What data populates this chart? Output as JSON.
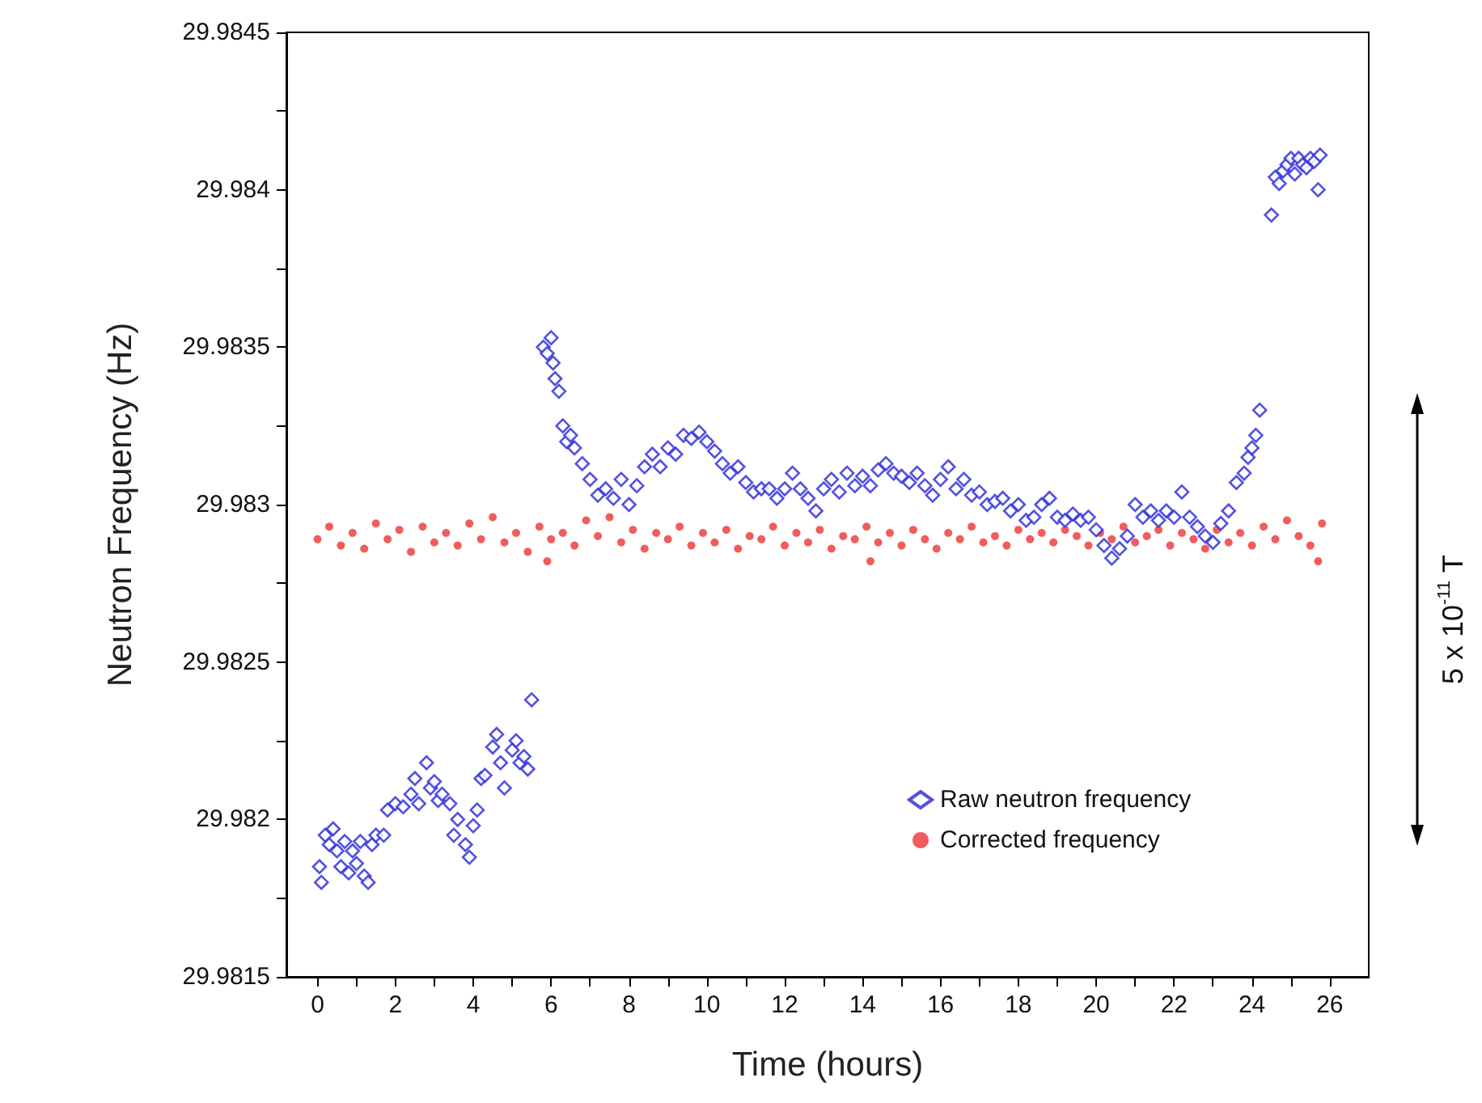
{
  "chart_data": {
    "type": "scatter",
    "xlabel": "Time (hours)",
    "ylabel": "Neutron Frequency (Hz)",
    "annotations": [
      "5 x 10$^{-11}$ T"
    ],
    "xlim": [
      -0.8,
      27
    ],
    "ylim": [
      29.9815,
      29.9845
    ],
    "xticks": [
      0,
      {
        "value": 1,
        "label": null
      },
      2,
      {
        "value": 3,
        "label": null
      },
      4,
      {
        "value": 5,
        "label": null
      },
      6,
      {
        "value": 7,
        "label": null
      },
      8,
      {
        "value": 9,
        "label": null
      },
      10,
      {
        "value": 11,
        "label": null
      },
      12,
      {
        "value": 13,
        "label": null
      },
      14,
      {
        "value": 15,
        "label": null
      },
      16,
      {
        "value": 17,
        "label": null
      },
      18,
      {
        "value": 19,
        "label": null
      },
      20,
      {
        "value": 21,
        "label": null
      },
      22,
      {
        "value": 23,
        "label": null
      },
      24,
      {
        "value": 25,
        "label": null
      },
      26
    ],
    "yticks": [
      29.9815,
      {
        "value": 29.98175,
        "label": null
      },
      29.982,
      {
        "value": 29.98225,
        "label": null
      },
      29.9825,
      {
        "value": 29.98275,
        "label": null
      },
      29.983,
      {
        "value": 29.98325,
        "label": null
      },
      29.9835,
      {
        "value": 29.98375,
        "label": null
      },
      29.984,
      {
        "value": 29.98425,
        "label": null
      },
      29.9845
    ],
    "grid": false,
    "legend": "bottom right",
    "series": [
      {
        "name": "Raw neutron frequency",
        "color": "#3333dd",
        "marker": "diamond",
        "x": [
          0.05,
          0.1,
          0.2,
          0.3,
          0.4,
          0.5,
          0.6,
          0.7,
          0.8,
          0.9,
          1.0,
          1.1,
          1.2,
          1.3,
          1.4,
          1.5,
          1.7,
          1.8,
          2.0,
          2.2,
          2.4,
          2.5,
          2.6,
          2.8,
          2.9,
          3.0,
          3.1,
          3.2,
          3.4,
          3.5,
          3.6,
          3.8,
          3.9,
          4.0,
          4.1,
          4.2,
          4.3,
          4.5,
          4.6,
          4.7,
          4.8,
          5.0,
          5.1,
          5.2,
          5.3,
          5.4,
          5.5,
          5.8,
          5.9,
          6.0,
          6.05,
          6.1,
          6.2,
          6.3,
          6.4,
          6.5,
          6.6,
          6.8,
          7.0,
          7.2,
          7.4,
          7.6,
          7.8,
          8.0,
          8.2,
          8.4,
          8.6,
          8.8,
          9.0,
          9.2,
          9.4,
          9.6,
          9.8,
          10.0,
          10.2,
          10.4,
          10.6,
          10.8,
          11.0,
          11.2,
          11.4,
          11.6,
          11.8,
          12.0,
          12.2,
          12.4,
          12.6,
          12.8,
          13.0,
          13.2,
          13.4,
          13.6,
          13.8,
          14.0,
          14.2,
          14.4,
          14.6,
          14.8,
          15.0,
          15.2,
          15.4,
          15.6,
          15.8,
          16.0,
          16.2,
          16.4,
          16.6,
          16.8,
          17.0,
          17.2,
          17.4,
          17.6,
          17.8,
          18.0,
          18.2,
          18.4,
          18.6,
          18.8,
          19.0,
          19.2,
          19.4,
          19.6,
          19.8,
          20.0,
          20.2,
          20.4,
          20.6,
          20.8,
          21.0,
          21.2,
          21.4,
          21.6,
          21.8,
          22.0,
          22.2,
          22.4,
          22.6,
          22.8,
          23.0,
          23.2,
          23.4,
          23.6,
          23.8,
          23.9,
          24.0,
          24.1,
          24.2,
          24.5,
          24.6,
          24.7,
          24.8,
          24.9,
          25.0,
          25.1,
          25.2,
          25.3,
          25.4,
          25.5,
          25.6,
          25.7,
          25.75
        ],
        "values": [
          29.98185,
          29.9818,
          29.98195,
          29.98192,
          29.98197,
          29.9819,
          29.98185,
          29.98193,
          29.98183,
          29.9819,
          29.98186,
          29.98193,
          29.98182,
          29.9818,
          29.98192,
          29.98195,
          29.98195,
          29.98203,
          29.98205,
          29.98204,
          29.98208,
          29.98213,
          29.98205,
          29.98218,
          29.9821,
          29.98212,
          29.98206,
          29.98208,
          29.98205,
          29.98195,
          29.982,
          29.98192,
          29.98188,
          29.98198,
          29.98203,
          29.98213,
          29.98214,
          29.98223,
          29.98227,
          29.98218,
          29.9821,
          29.98222,
          29.98225,
          29.98218,
          29.9822,
          29.98216,
          29.98238,
          29.9835,
          29.98348,
          29.98353,
          29.98345,
          29.9834,
          29.98336,
          29.98325,
          29.9832,
          29.98322,
          29.98318,
          29.98313,
          29.98308,
          29.98303,
          29.98305,
          29.98302,
          29.98308,
          29.983,
          29.98306,
          29.98312,
          29.98316,
          29.98312,
          29.98318,
          29.98316,
          29.98322,
          29.98321,
          29.98323,
          29.9832,
          29.98317,
          29.98313,
          29.9831,
          29.98312,
          29.98307,
          29.98304,
          29.98305,
          29.98305,
          29.98302,
          29.98305,
          29.9831,
          29.98305,
          29.98302,
          29.98298,
          29.98305,
          29.98308,
          29.98304,
          29.9831,
          29.98306,
          29.98309,
          29.98306,
          29.98311,
          29.98313,
          29.9831,
          29.98309,
          29.98307,
          29.9831,
          29.98306,
          29.98303,
          29.98308,
          29.98312,
          29.98305,
          29.98308,
          29.98303,
          29.98304,
          29.983,
          29.98301,
          29.98302,
          29.98298,
          29.983,
          29.98295,
          29.98296,
          29.983,
          29.98302,
          29.98296,
          29.98295,
          29.98297,
          29.98295,
          29.98296,
          29.98292,
          29.98287,
          29.98283,
          29.98286,
          29.9829,
          29.983,
          29.98296,
          29.98298,
          29.98295,
          29.98298,
          29.98296,
          29.98304,
          29.98296,
          29.98293,
          29.9829,
          29.98288,
          29.98294,
          29.98298,
          29.98307,
          29.9831,
          29.98315,
          29.98318,
          29.98322,
          29.9833,
          29.98392,
          29.98404,
          29.98402,
          29.98406,
          29.98408,
          29.9841,
          29.98405,
          29.9841,
          29.98408,
          29.98407,
          29.9841,
          29.98409,
          29.984,
          29.98411
        ]
      },
      {
        "name": "Corrected frequency",
        "color": "#ee3333",
        "marker": "circle",
        "x": [
          0.0,
          0.3,
          0.6,
          0.9,
          1.2,
          1.5,
          1.8,
          2.1,
          2.4,
          2.7,
          3.0,
          3.3,
          3.6,
          3.9,
          4.2,
          4.5,
          4.8,
          5.1,
          5.4,
          5.7,
          5.9,
          6.0,
          6.3,
          6.6,
          6.9,
          7.2,
          7.5,
          7.8,
          8.1,
          8.4,
          8.7,
          9.0,
          9.3,
          9.6,
          9.9,
          10.2,
          10.5,
          10.8,
          11.1,
          11.4,
          11.7,
          12.0,
          12.3,
          12.6,
          12.9,
          13.2,
          13.5,
          13.8,
          14.1,
          14.2,
          14.4,
          14.7,
          15.0,
          15.3,
          15.6,
          15.9,
          16.2,
          16.5,
          16.8,
          17.1,
          17.4,
          17.7,
          18.0,
          18.3,
          18.6,
          18.9,
          19.2,
          19.5,
          19.8,
          20.1,
          20.4,
          20.7,
          21.0,
          21.3,
          21.6,
          21.9,
          22.2,
          22.5,
          22.8,
          23.1,
          23.4,
          23.7,
          24.0,
          24.3,
          24.6,
          24.9,
          25.2,
          25.5,
          25.8,
          25.7
        ],
        "values": [
          29.98289,
          29.98293,
          29.98287,
          29.98291,
          29.98286,
          29.98294,
          29.98289,
          29.98292,
          29.98285,
          29.98293,
          29.98288,
          29.98291,
          29.98287,
          29.98294,
          29.98289,
          29.98296,
          29.98288,
          29.98291,
          29.98285,
          29.98293,
          29.98282,
          29.98289,
          29.98291,
          29.98287,
          29.98295,
          29.9829,
          29.98296,
          29.98288,
          29.98292,
          29.98286,
          29.98291,
          29.98289,
          29.98293,
          29.98287,
          29.98291,
          29.98288,
          29.98292,
          29.98286,
          29.9829,
          29.98289,
          29.98293,
          29.98287,
          29.98291,
          29.98288,
          29.98292,
          29.98286,
          29.9829,
          29.98289,
          29.98293,
          29.98282,
          29.98288,
          29.98291,
          29.98287,
          29.98292,
          29.98289,
          29.98286,
          29.98291,
          29.98289,
          29.98293,
          29.98288,
          29.9829,
          29.98287,
          29.98292,
          29.98289,
          29.98291,
          29.98288,
          29.98292,
          29.9829,
          29.98287,
          29.98291,
          29.98289,
          29.98293,
          29.98288,
          29.9829,
          29.98292,
          29.98287,
          29.98291,
          29.98289,
          29.98286,
          29.98292,
          29.98288,
          29.98291,
          29.98287,
          29.98293,
          29.98289,
          29.98295,
          29.9829,
          29.98287,
          29.98294,
          29.98282
        ]
      }
    ]
  }
}
